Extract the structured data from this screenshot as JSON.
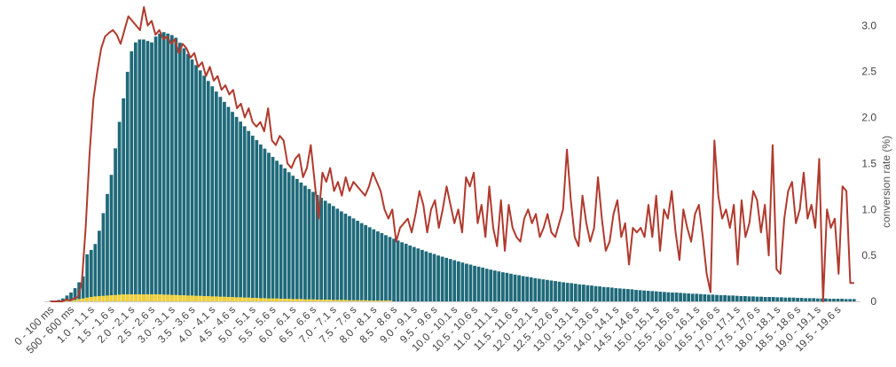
{
  "chart_data": {
    "type": "bar",
    "bin_width_s": 0.1,
    "x_tick_labels": [
      "0 - 100 ms",
      "500 - 600 ms",
      "1.0 - 1.1 s",
      "1.5 - 1.6 s",
      "2.0 - 2.1 s",
      "2.5 - 2.6 s",
      "3.0 - 3.1 s",
      "3.5 - 3.6 s",
      "4.0 - 4.1 s",
      "4.5 - 4.6 s",
      "5.0 - 5.1 s",
      "5.5 - 5.6 s",
      "6.0 - 6.1 s",
      "6.5 - 6.6 s",
      "7.0 - 7.1 s",
      "7.5 - 7.6 s",
      "8.0 - 8.1 s",
      "8.5 - 8.6 s",
      "9.0 - 9.1 s",
      "9.5 - 9.6 s",
      "10.0 - 10.1 s",
      "10.5 - 10.6 s",
      "11.0 - 11.1 s",
      "11.5 - 11.6 s",
      "12.0 - 12.1 s",
      "12.5 - 12.6 s",
      "13.0 - 13.1 s",
      "13.5 - 13.6 s",
      "14.0 - 14.1 s",
      "14.5 - 14.6 s",
      "15.0 - 15.1 s",
      "15.5 - 15.6 s",
      "16.0 - 16.1 s",
      "16.5 - 16.6 s",
      "17.0 - 17.1 s",
      "17.5 - 17.6 s",
      "18.0 - 18.1 s",
      "18.5 - 18.6 s",
      "19.0 - 19.1 s",
      "19.5 - 19.6 s"
    ],
    "y_right": {
      "label": "conversion rate (%)",
      "ticks": [
        "0",
        "0.5",
        "1.0",
        "1.5",
        "2.0",
        "2.5",
        "3.0"
      ],
      "range": [
        0,
        3.2
      ]
    },
    "grid": false,
    "legend": "none",
    "series": [
      {
        "type": "bar",
        "color": "#1f6a7a",
        "values_relative": [
          0.002,
          0.003,
          0.005,
          0.01,
          0.02,
          0.03,
          0.045,
          0.065,
          0.085,
          0.16,
          0.175,
          0.195,
          0.24,
          0.3,
          0.365,
          0.43,
          0.52,
          0.61,
          0.69,
          0.78,
          0.85,
          0.88,
          0.89,
          0.89,
          0.885,
          0.88,
          0.9,
          0.91,
          0.915,
          0.91,
          0.905,
          0.896,
          0.879,
          0.86,
          0.841,
          0.822,
          0.803,
          0.785,
          0.767,
          0.749,
          0.731,
          0.713,
          0.695,
          0.678,
          0.661,
          0.644,
          0.627,
          0.611,
          0.595,
          0.579,
          0.563,
          0.548,
          0.533,
          0.519,
          0.505,
          0.491,
          0.478,
          0.465,
          0.452,
          0.439,
          0.427,
          0.416,
          0.404,
          0.393,
          0.382,
          0.372,
          0.362,
          0.352,
          0.342,
          0.333,
          0.324,
          0.315,
          0.306,
          0.298,
          0.29,
          0.282,
          0.274,
          0.266,
          0.259,
          0.252,
          0.245,
          0.238,
          0.232,
          0.225,
          0.219,
          0.213,
          0.207,
          0.201,
          0.196,
          0.19,
          0.185,
          0.18,
          0.175,
          0.17,
          0.165,
          0.161,
          0.156,
          0.152,
          0.148,
          0.144,
          0.14,
          0.136,
          0.132,
          0.128,
          0.125,
          0.121,
          0.118,
          0.115,
          0.111,
          0.108,
          0.105,
          0.102,
          0.099,
          0.097,
          0.094,
          0.091,
          0.089,
          0.086,
          0.084,
          0.082,
          0.079,
          0.077,
          0.075,
          0.073,
          0.071,
          0.069,
          0.067,
          0.065,
          0.063,
          0.062,
          0.06,
          0.058,
          0.057,
          0.055,
          0.054,
          0.052,
          0.051,
          0.049,
          0.048,
          0.047,
          0.045,
          0.044,
          0.043,
          0.042,
          0.041,
          0.039,
          0.038,
          0.037,
          0.036,
          0.035,
          0.034,
          0.033,
          0.032,
          0.031,
          0.03,
          0.03,
          0.029,
          0.028,
          0.027,
          0.026,
          0.026,
          0.025,
          0.024,
          0.023,
          0.023,
          0.022,
          0.021,
          0.021,
          0.02,
          0.02,
          0.019,
          0.018,
          0.018,
          0.017,
          0.017,
          0.016,
          0.016,
          0.015,
          0.015,
          0.015,
          0.014,
          0.014,
          0.013,
          0.013,
          0.013,
          0.012,
          0.012,
          0.011,
          0.011,
          0.011,
          0.01,
          0.01,
          0.01,
          0.009,
          0.009,
          0.009,
          0.009,
          0.008,
          0.008,
          0.008
        ]
      },
      {
        "type": "bar",
        "color": "#f5d130",
        "values_relative": [
          0.0,
          0.0,
          0.0,
          0.001,
          0.002,
          0.003,
          0.005,
          0.008,
          0.01,
          0.013,
          0.015,
          0.017,
          0.018,
          0.019,
          0.02,
          0.021,
          0.022,
          0.023,
          0.024,
          0.024,
          0.024,
          0.024,
          0.024,
          0.024,
          0.024,
          0.024,
          0.024,
          0.024,
          0.023,
          0.023,
          0.022,
          0.022,
          0.021,
          0.021,
          0.02,
          0.02,
          0.019,
          0.019,
          0.018,
          0.018,
          0.017,
          0.017,
          0.016,
          0.016,
          0.015,
          0.015,
          0.014,
          0.014,
          0.013,
          0.013,
          0.012,
          0.012,
          0.011,
          0.011,
          0.01,
          0.01,
          0.01,
          0.009,
          0.009,
          0.009,
          0.008,
          0.008,
          0.008,
          0.007,
          0.007,
          0.007,
          0.006,
          0.006,
          0.006,
          0.006,
          0.005,
          0.005,
          0.005,
          0.005,
          0.004,
          0.004,
          0.004,
          0.004,
          0.004,
          0.003,
          0.003,
          0.003,
          0.003,
          0.003,
          0.003
        ]
      },
      {
        "type": "line",
        "axis": "right",
        "color": "#b03a2e",
        "values": [
          0.0,
          0.0,
          0.0,
          0.0,
          0.02,
          0.01,
          0.03,
          0.05,
          0.2,
          0.8,
          1.6,
          2.2,
          2.5,
          2.75,
          2.88,
          2.92,
          2.95,
          2.9,
          2.8,
          2.95,
          3.1,
          3.05,
          3.0,
          2.95,
          3.2,
          3.0,
          3.05,
          2.9,
          2.95,
          2.85,
          2.88,
          2.8,
          2.85,
          2.7,
          2.8,
          2.75,
          2.65,
          2.7,
          2.55,
          2.6,
          2.45,
          2.55,
          2.4,
          2.45,
          2.3,
          2.35,
          2.25,
          2.3,
          2.1,
          2.15,
          2.0,
          2.1,
          1.95,
          1.9,
          1.95,
          1.85,
          2.1,
          1.75,
          1.7,
          1.8,
          1.75,
          1.5,
          1.45,
          1.55,
          1.6,
          1.35,
          1.45,
          1.7,
          1.3,
          0.9,
          1.4,
          1.3,
          1.45,
          1.2,
          1.3,
          1.15,
          1.35,
          1.2,
          1.3,
          1.25,
          1.2,
          1.15,
          1.25,
          1.4,
          1.3,
          1.2,
          1.0,
          0.9,
          1.0,
          0.65,
          0.8,
          0.85,
          0.9,
          0.75,
          0.95,
          1.2,
          1.05,
          0.75,
          1.0,
          1.1,
          0.8,
          1.0,
          1.25,
          1.05,
          0.85,
          1.0,
          0.75,
          1.35,
          1.25,
          1.4,
          0.85,
          1.05,
          0.7,
          1.25,
          0.8,
          0.6,
          1.1,
          0.55,
          1.05,
          0.8,
          0.7,
          0.65,
          0.9,
          1.0,
          0.85,
          0.95,
          0.7,
          0.8,
          0.95,
          0.75,
          0.7,
          0.85,
          1.0,
          1.65,
          1.1,
          0.7,
          0.6,
          1.15,
          0.85,
          0.65,
          0.8,
          1.35,
          0.9,
          0.55,
          0.65,
          0.95,
          1.1,
          0.7,
          0.85,
          0.4,
          0.8,
          0.75,
          0.8,
          0.7,
          1.05,
          0.7,
          1.15,
          0.55,
          1.0,
          0.9,
          1.2,
          0.75,
          0.45,
          1.0,
          0.8,
          0.65,
          0.95,
          1.05,
          0.7,
          0.3,
          0.1,
          1.75,
          1.15,
          0.9,
          1.0,
          0.8,
          1.05,
          0.4,
          1.1,
          0.7,
          0.85,
          1.2,
          1.1,
          0.75,
          1.05,
          0.5,
          1.7,
          0.35,
          0.3,
          0.9,
          1.2,
          1.3,
          0.85,
          1.0,
          1.4,
          0.9,
          1.05,
          0.8,
          1.55,
          0.0,
          1.0,
          0.8,
          0.9,
          0.3,
          1.25,
          1.2,
          0.2,
          0.2
        ]
      }
    ]
  }
}
